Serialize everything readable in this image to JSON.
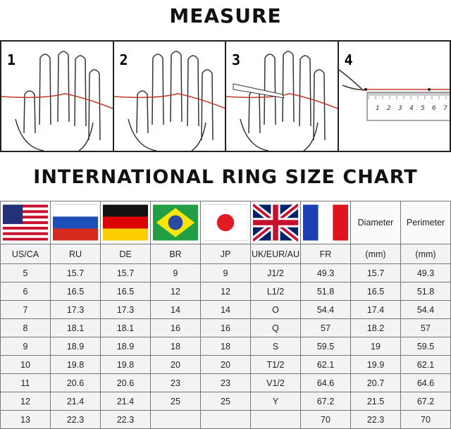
{
  "titles": {
    "measure": "MEASURE",
    "chart": "INTERNATIONAL RING SIZE CHART"
  },
  "steps": [
    "1",
    "2",
    "3",
    "4"
  ],
  "ruler_labels": [
    "1",
    "2",
    "3",
    "4",
    "5",
    "6",
    "7"
  ],
  "colors": {
    "string": "#c0392b",
    "border": "#222222"
  },
  "flags": [
    "us-flag-icon",
    "russia-flag-icon",
    "germany-flag-icon",
    "brazil-flag-icon",
    "japan-flag-icon",
    "uk-flag-icon",
    "france-flag-icon"
  ],
  "extra_headers": [
    "Diameter",
    "Perimeter"
  ],
  "columns": [
    "US/CA",
    "RU",
    "DE",
    "BR",
    "JP",
    "UK/EUR/AU",
    "FR",
    "(mm)",
    "(mm)"
  ],
  "rows": [
    [
      "5",
      "15.7",
      "15.7",
      "9",
      "9",
      "J1/2",
      "49.3",
      "15.7",
      "49.3"
    ],
    [
      "6",
      "16.5",
      "16.5",
      "12",
      "12",
      "L1/2",
      "51.8",
      "16.5",
      "51.8"
    ],
    [
      "7",
      "17.3",
      "17.3",
      "14",
      "14",
      "O",
      "54.4",
      "17.4",
      "54.4"
    ],
    [
      "8",
      "18.1",
      "18.1",
      "16",
      "16",
      "Q",
      "57",
      "18.2",
      "57"
    ],
    [
      "9",
      "18.9",
      "18.9",
      "18",
      "18",
      "S",
      "59.5",
      "19",
      "59.5"
    ],
    [
      "10",
      "19.8",
      "19.8",
      "20",
      "20",
      "T1/2",
      "62.1",
      "19.9",
      "62.1"
    ],
    [
      "11",
      "20.6",
      "20.6",
      "23",
      "23",
      "V1/2",
      "64.6",
      "20.7",
      "64.6"
    ],
    [
      "12",
      "21.4",
      "21.4",
      "25",
      "25",
      "Y",
      "67.2",
      "21.5",
      "67.2"
    ],
    [
      "13",
      "22.3",
      "22.3",
      "",
      "",
      "",
      "70",
      "22.3",
      "70"
    ]
  ]
}
